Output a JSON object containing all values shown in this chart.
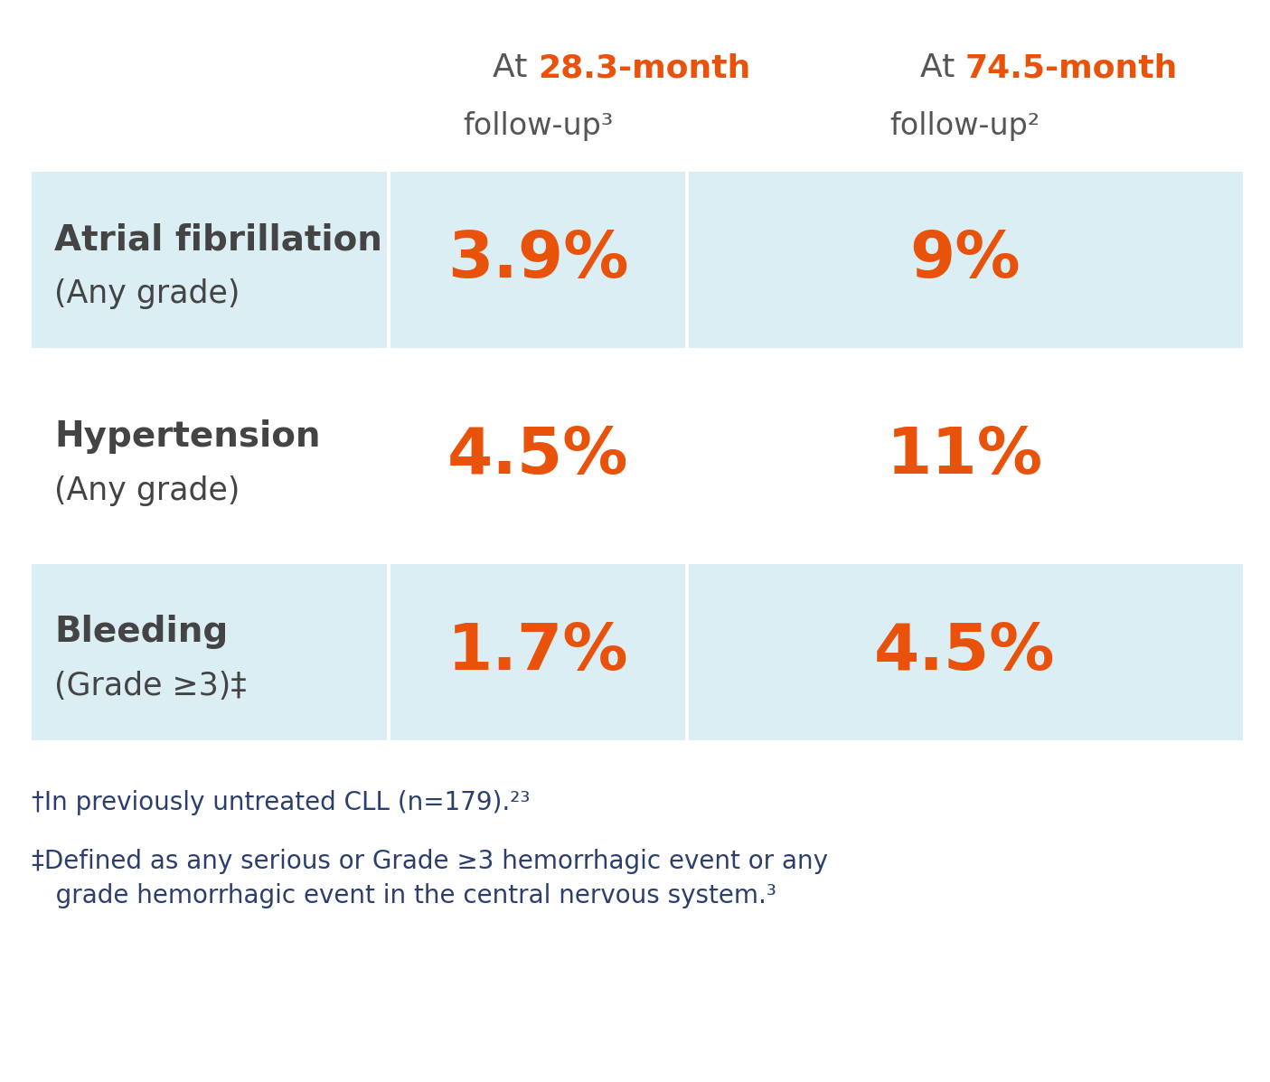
{
  "bg_color": "#ffffff",
  "cell_bg_color": "#daeef4",
  "header_gray": "#555555",
  "orange_color": "#e8520a",
  "dark_text": "#444444",
  "footnote_color": "#2c3e6b",
  "rows": [
    {
      "label_bold": "Atrial fibrillation",
      "label_sub": "(Any grade)",
      "val1": "3.9%",
      "val2": "9%",
      "bg": "#daeef4"
    },
    {
      "label_bold": "Hypertension",
      "label_sub": "(Any grade)",
      "val1": "4.5%",
      "val2": "11%",
      "bg": "#ffffff"
    },
    {
      "label_bold": "Bleeding",
      "label_sub": "(Grade ≥3)‡",
      "val1": "1.7%",
      "val2": "4.5%",
      "bg": "#daeef4"
    }
  ],
  "footnote1": "†In previously untreated CLL (n=179).²³",
  "footnote2_line1": "‡Defined as any serious or Grade ≥3 hemorrhagic event or any",
  "footnote2_line2": "   grade hemorrhagic event in the central nervous system.³",
  "col1_at": "At ",
  "col1_bold": "28.3-month",
  "col1_sub": "follow-up³",
  "col2_at": "At ",
  "col2_bold": "74.5-month",
  "col2_sub": "follow-up²"
}
